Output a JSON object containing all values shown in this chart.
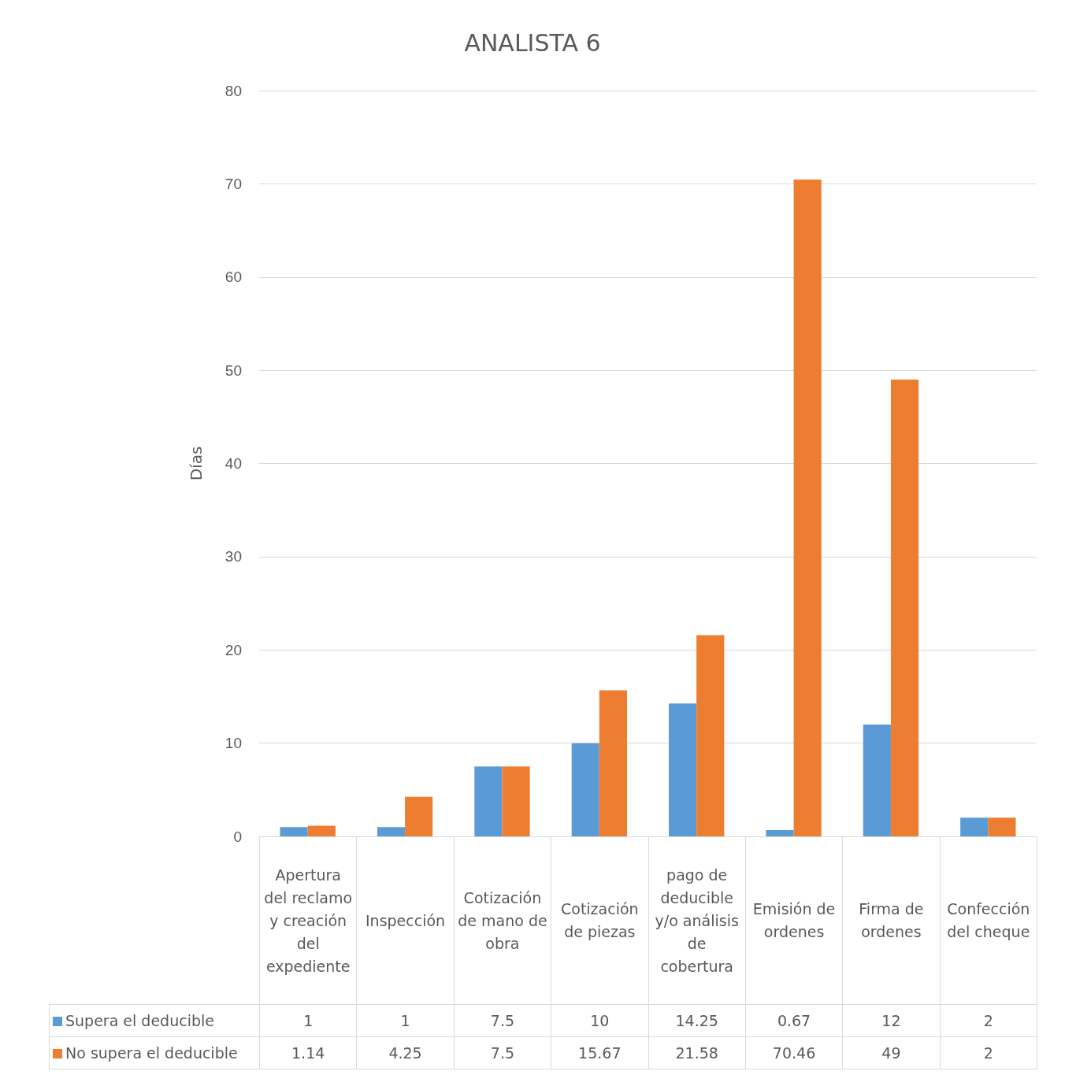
{
  "chart_data": {
    "type": "bar",
    "title": "ANALISTA 6",
    "ylabel": "Días",
    "categories": [
      "Apertura del reclamo y creación del expediente",
      "Inspección",
      "Cotización de mano de obra",
      "Cotización de piezas",
      "pago de deducible y/o análisis de cobertura",
      "Emisión de ordenes",
      "Firma de ordenes",
      "Confección del cheque"
    ],
    "series": [
      {
        "name": "Supera el deducible",
        "color": "#5b9bd5",
        "values": [
          1,
          1,
          7.5,
          10,
          14.25,
          0.67,
          12,
          2
        ]
      },
      {
        "name": "No supera el deducible",
        "color": "#ed7d31",
        "values": [
          1.14,
          4.25,
          7.5,
          15.67,
          21.58,
          70.46,
          49,
          2
        ]
      }
    ],
    "ylim": [
      0,
      80
    ],
    "yticks": [
      0,
      10,
      20,
      30,
      40,
      50,
      60,
      70,
      80
    ],
    "grid": "y",
    "legend": "bottom",
    "data_labels": true
  }
}
